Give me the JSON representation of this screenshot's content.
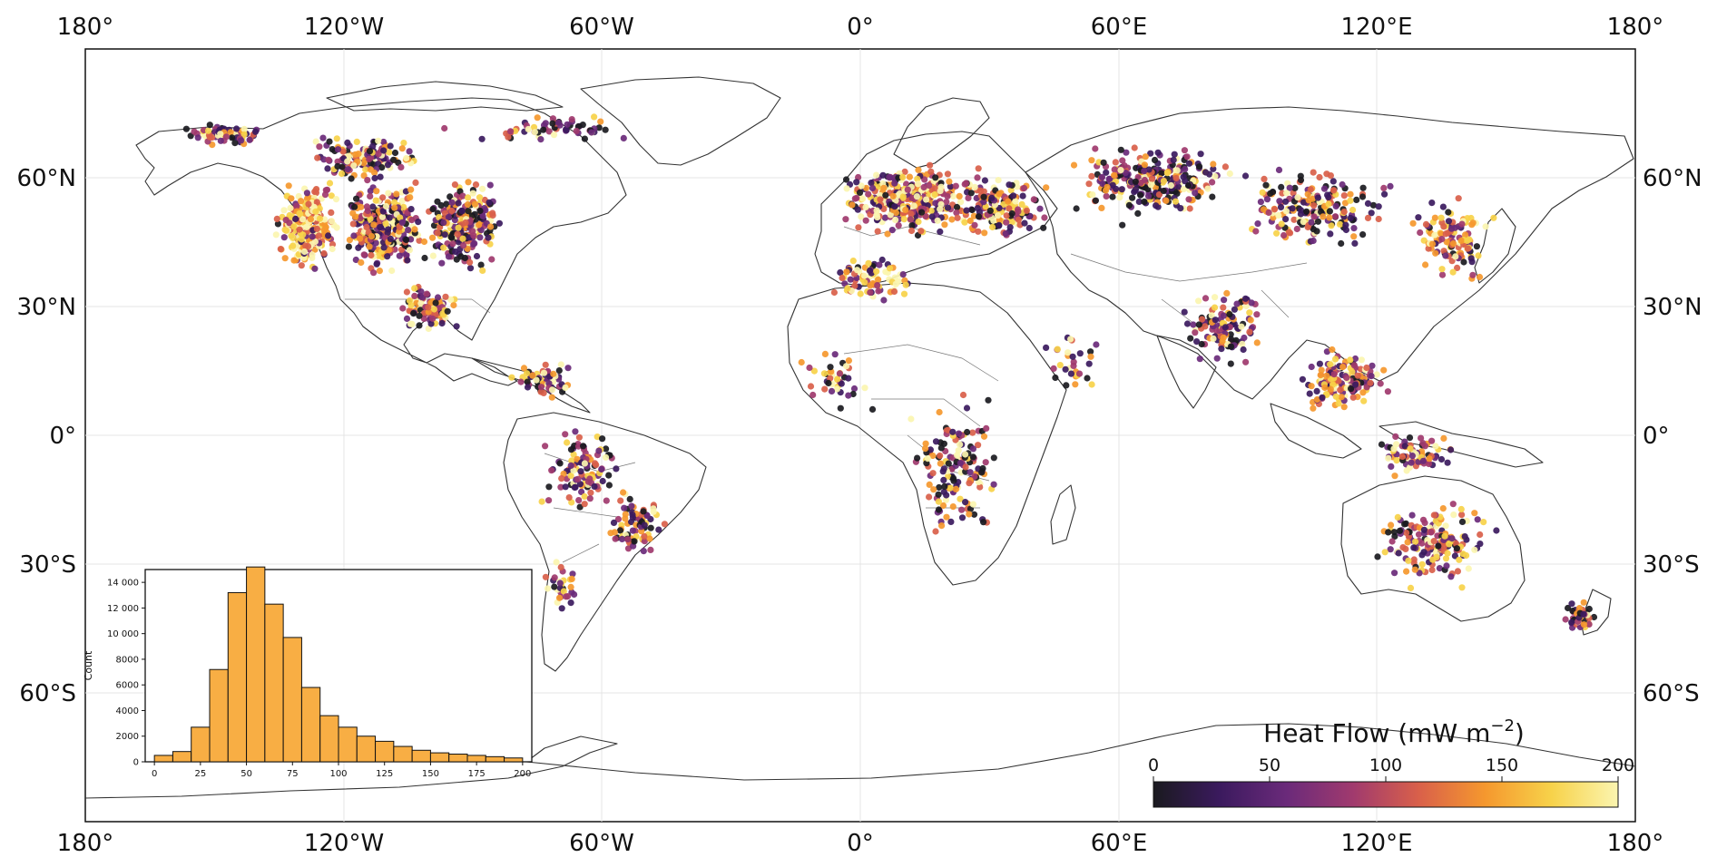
{
  "lon_labels": [
    "180°",
    "120°W",
    "60°W",
    "0°",
    "60°E",
    "120°E",
    "180°"
  ],
  "lat_labels": [
    "60°N",
    "30°N",
    "0°",
    "30°S",
    "60°S"
  ],
  "colorbar": {
    "title": "Heat Flow (mW m",
    "title_exp": "−2",
    "title_close": ")",
    "ticks": [
      "0",
      "50",
      "100",
      "150",
      "200"
    ],
    "stops": [
      "#1a1a1f",
      "#3b1a5e",
      "#6a2a7a",
      "#a03a6e",
      "#d9604a",
      "#f5982e",
      "#f7d24a",
      "#fbf5b0"
    ]
  },
  "chart_data": {
    "type": "bar",
    "title": "",
    "xlabel": "",
    "ylabel": "Count",
    "x_ticks": [
      "0",
      "25",
      "50",
      "75",
      "100",
      "125",
      "150",
      "175",
      "200"
    ],
    "y_ticks": [
      "0",
      "2000",
      "4000",
      "6000",
      "8000",
      "10 000",
      "12 000",
      "14 000"
    ],
    "ylim": [
      0,
      15000
    ],
    "xlim": [
      -5,
      205
    ],
    "bin_edges": [
      0,
      10,
      20,
      30,
      40,
      50,
      60,
      70,
      80,
      90,
      100,
      110,
      120,
      130,
      140,
      150,
      160,
      170,
      180,
      190,
      200
    ],
    "values": [
      500,
      800,
      2700,
      7200,
      13200,
      15200,
      12300,
      9700,
      5800,
      3600,
      2700,
      2000,
      1600,
      1200,
      900,
      700,
      600,
      500,
      400,
      300
    ],
    "bar_color": "#f8ae44",
    "edge_color": "#111111"
  }
}
